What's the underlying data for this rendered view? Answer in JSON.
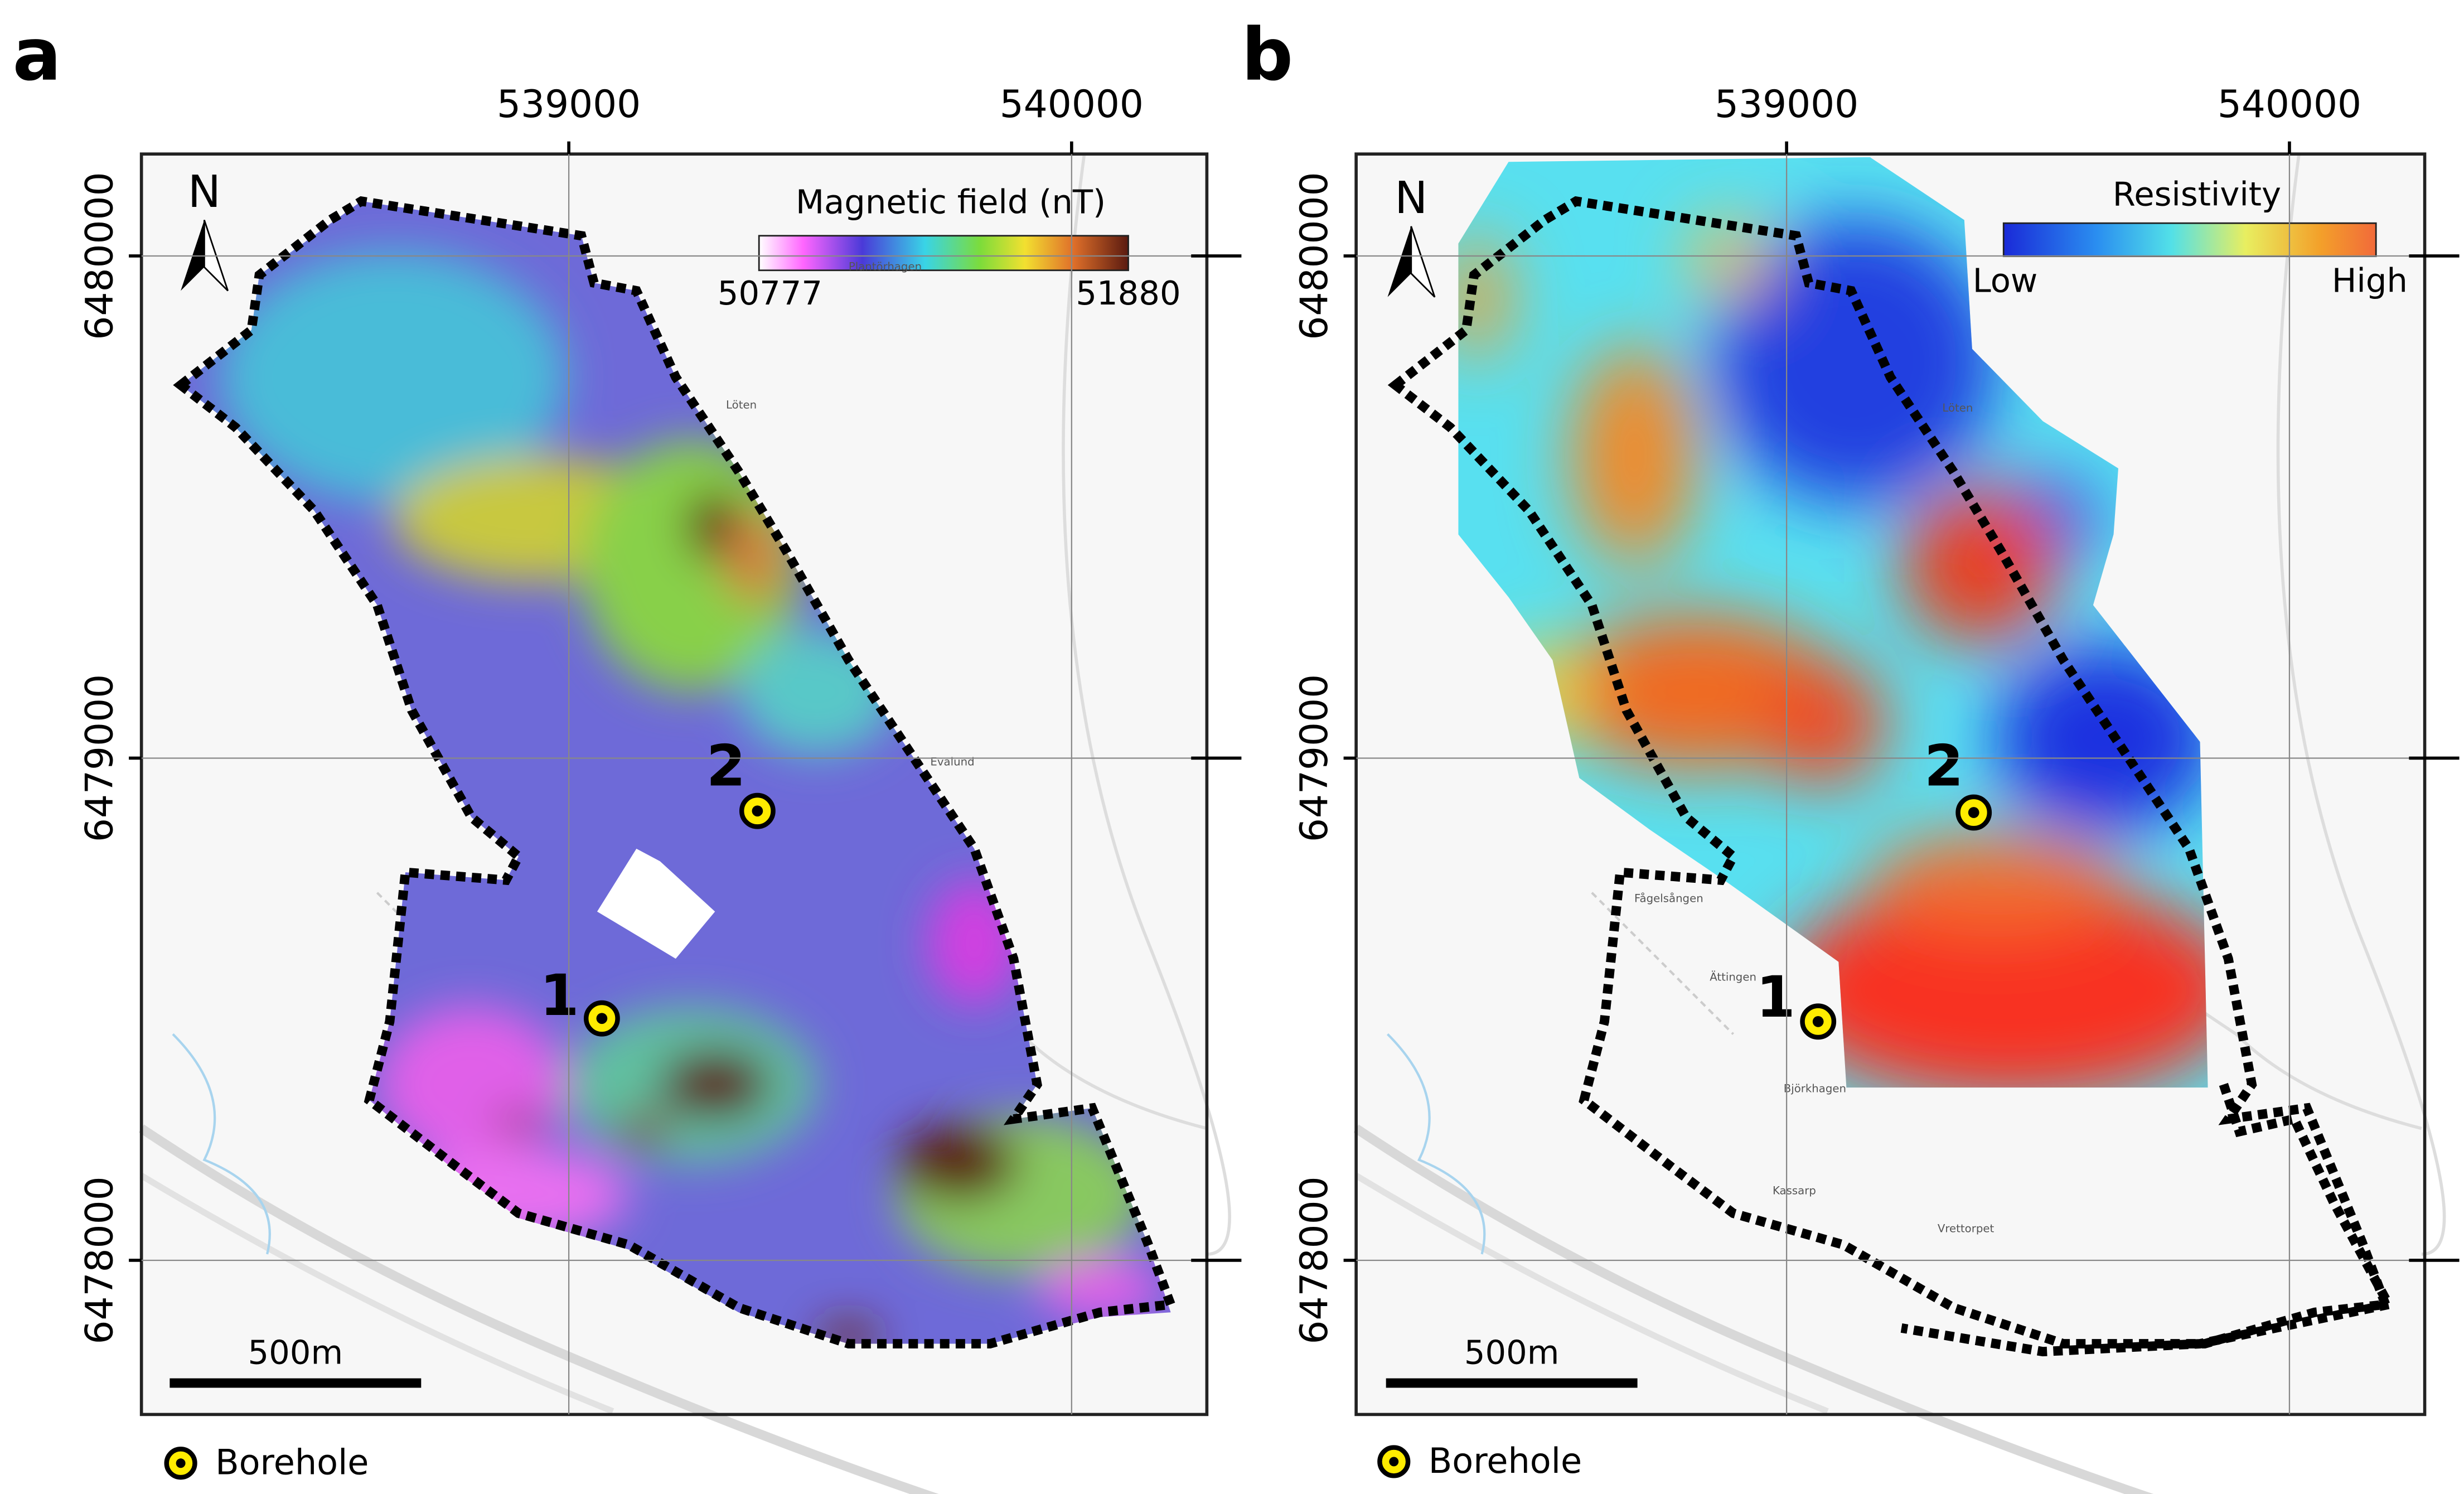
{
  "panels": [
    {
      "label": "a",
      "xlim": [
        538150,
        540269
      ],
      "ylim": [
        6477693,
        6480203
      ],
      "xticks": [
        539000,
        540000
      ],
      "yticks": [
        6480000,
        6479000,
        6478000
      ],
      "north": "N",
      "legend": {
        "title": "Magnetic field (nT)",
        "min": 50777,
        "max": 51880
      },
      "boreholes": [
        "1",
        "2"
      ],
      "scale_bar": "500m",
      "map_labels": [
        "Löten",
        "Evalund",
        "Plantörhagen"
      ]
    },
    {
      "label": "b",
      "xlim": [
        538144,
        540269
      ],
      "ylim": [
        6477693,
        6480203
      ],
      "xticks": [
        539000,
        540000
      ],
      "yticks": [
        6480000,
        6479000,
        6478000
      ],
      "north": "N",
      "legend": {
        "title": "Resistivity",
        "min": "Low",
        "max": "High"
      },
      "boreholes": [
        "1",
        "2"
      ],
      "scale_bar": "500m",
      "map_labels": [
        "Löten",
        "Fågelsången",
        "Ättingen",
        "Björkhagen",
        "Kassarp",
        "Vrettorpet"
      ]
    }
  ],
  "key": "Borehole"
}
